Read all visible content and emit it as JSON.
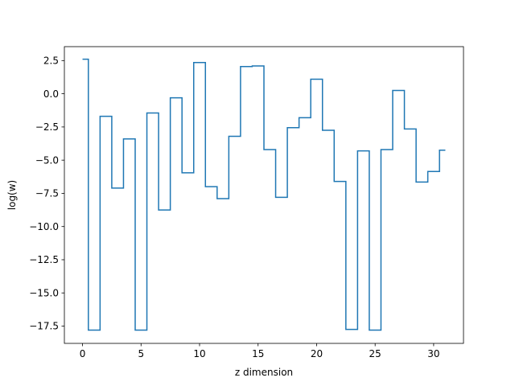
{
  "chart_data": {
    "type": "line",
    "drawstyle": "steps-mid",
    "xlabel": "z dimension",
    "ylabel": "log(w)",
    "xlim": [
      -1.55,
      32.55
    ],
    "ylim": [
      -18.8,
      3.55
    ],
    "xticks": [
      0,
      5,
      10,
      15,
      20,
      25,
      30
    ],
    "yticks": [
      2.5,
      0.0,
      -2.5,
      -5.0,
      -7.5,
      -10.0,
      -12.5,
      -15.0,
      -17.5
    ],
    "ytick_labels": [
      "2.5",
      "0.0",
      "−2.5",
      "−5.0",
      "−7.5",
      "−10.0",
      "−12.5",
      "−15.0",
      "−17.5"
    ],
    "grid": false,
    "legend": "none",
    "series": [
      {
        "color": "#1f77b4",
        "x": [
          0,
          1,
          2,
          3,
          4,
          5,
          6,
          7,
          8,
          9,
          10,
          11,
          12,
          13,
          14,
          15,
          16,
          17,
          18,
          19,
          20,
          21,
          22,
          23,
          24,
          25,
          26,
          27,
          28,
          29,
          30,
          31
        ],
        "values": [
          2.6,
          -17.8,
          -1.7,
          -7.1,
          -3.4,
          -17.8,
          -1.45,
          -8.75,
          -0.3,
          -5.95,
          2.35,
          -7.0,
          -7.9,
          -3.2,
          2.05,
          2.1,
          -4.2,
          -7.8,
          -2.55,
          -1.8,
          1.1,
          -2.75,
          -6.6,
          -17.75,
          -4.3,
          -17.8,
          -4.2,
          0.25,
          -2.65,
          -6.65,
          -5.85,
          -4.25
        ]
      }
    ]
  }
}
